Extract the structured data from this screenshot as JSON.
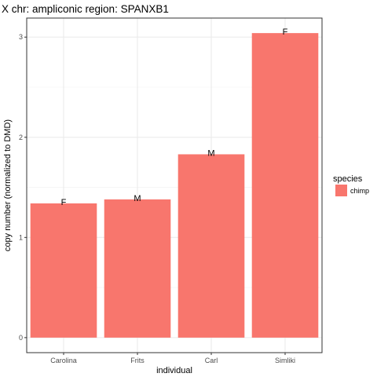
{
  "chart_data": {
    "type": "bar",
    "title": "X chr: ampliconic region: SPANXB1",
    "xlabel": "individual",
    "ylabel": "copy number (normalized to DMD)",
    "categories": [
      "Carolina",
      "Frits",
      "Carl",
      "Simliki"
    ],
    "values": [
      1.34,
      1.38,
      1.83,
      3.04
    ],
    "bar_labels": [
      "F",
      "M",
      "M",
      "F"
    ],
    "ylim": [
      -0.15,
      3.19
    ],
    "yticks": [
      0,
      1,
      2,
      3
    ],
    "ytick_labels": [
      "0",
      "1",
      "2",
      "3"
    ],
    "grid": true,
    "legend": {
      "title": "species",
      "position": "right",
      "entries": [
        {
          "label": "chimp",
          "color": "#F8766D"
        }
      ]
    },
    "bar_color": "#F8766D"
  }
}
